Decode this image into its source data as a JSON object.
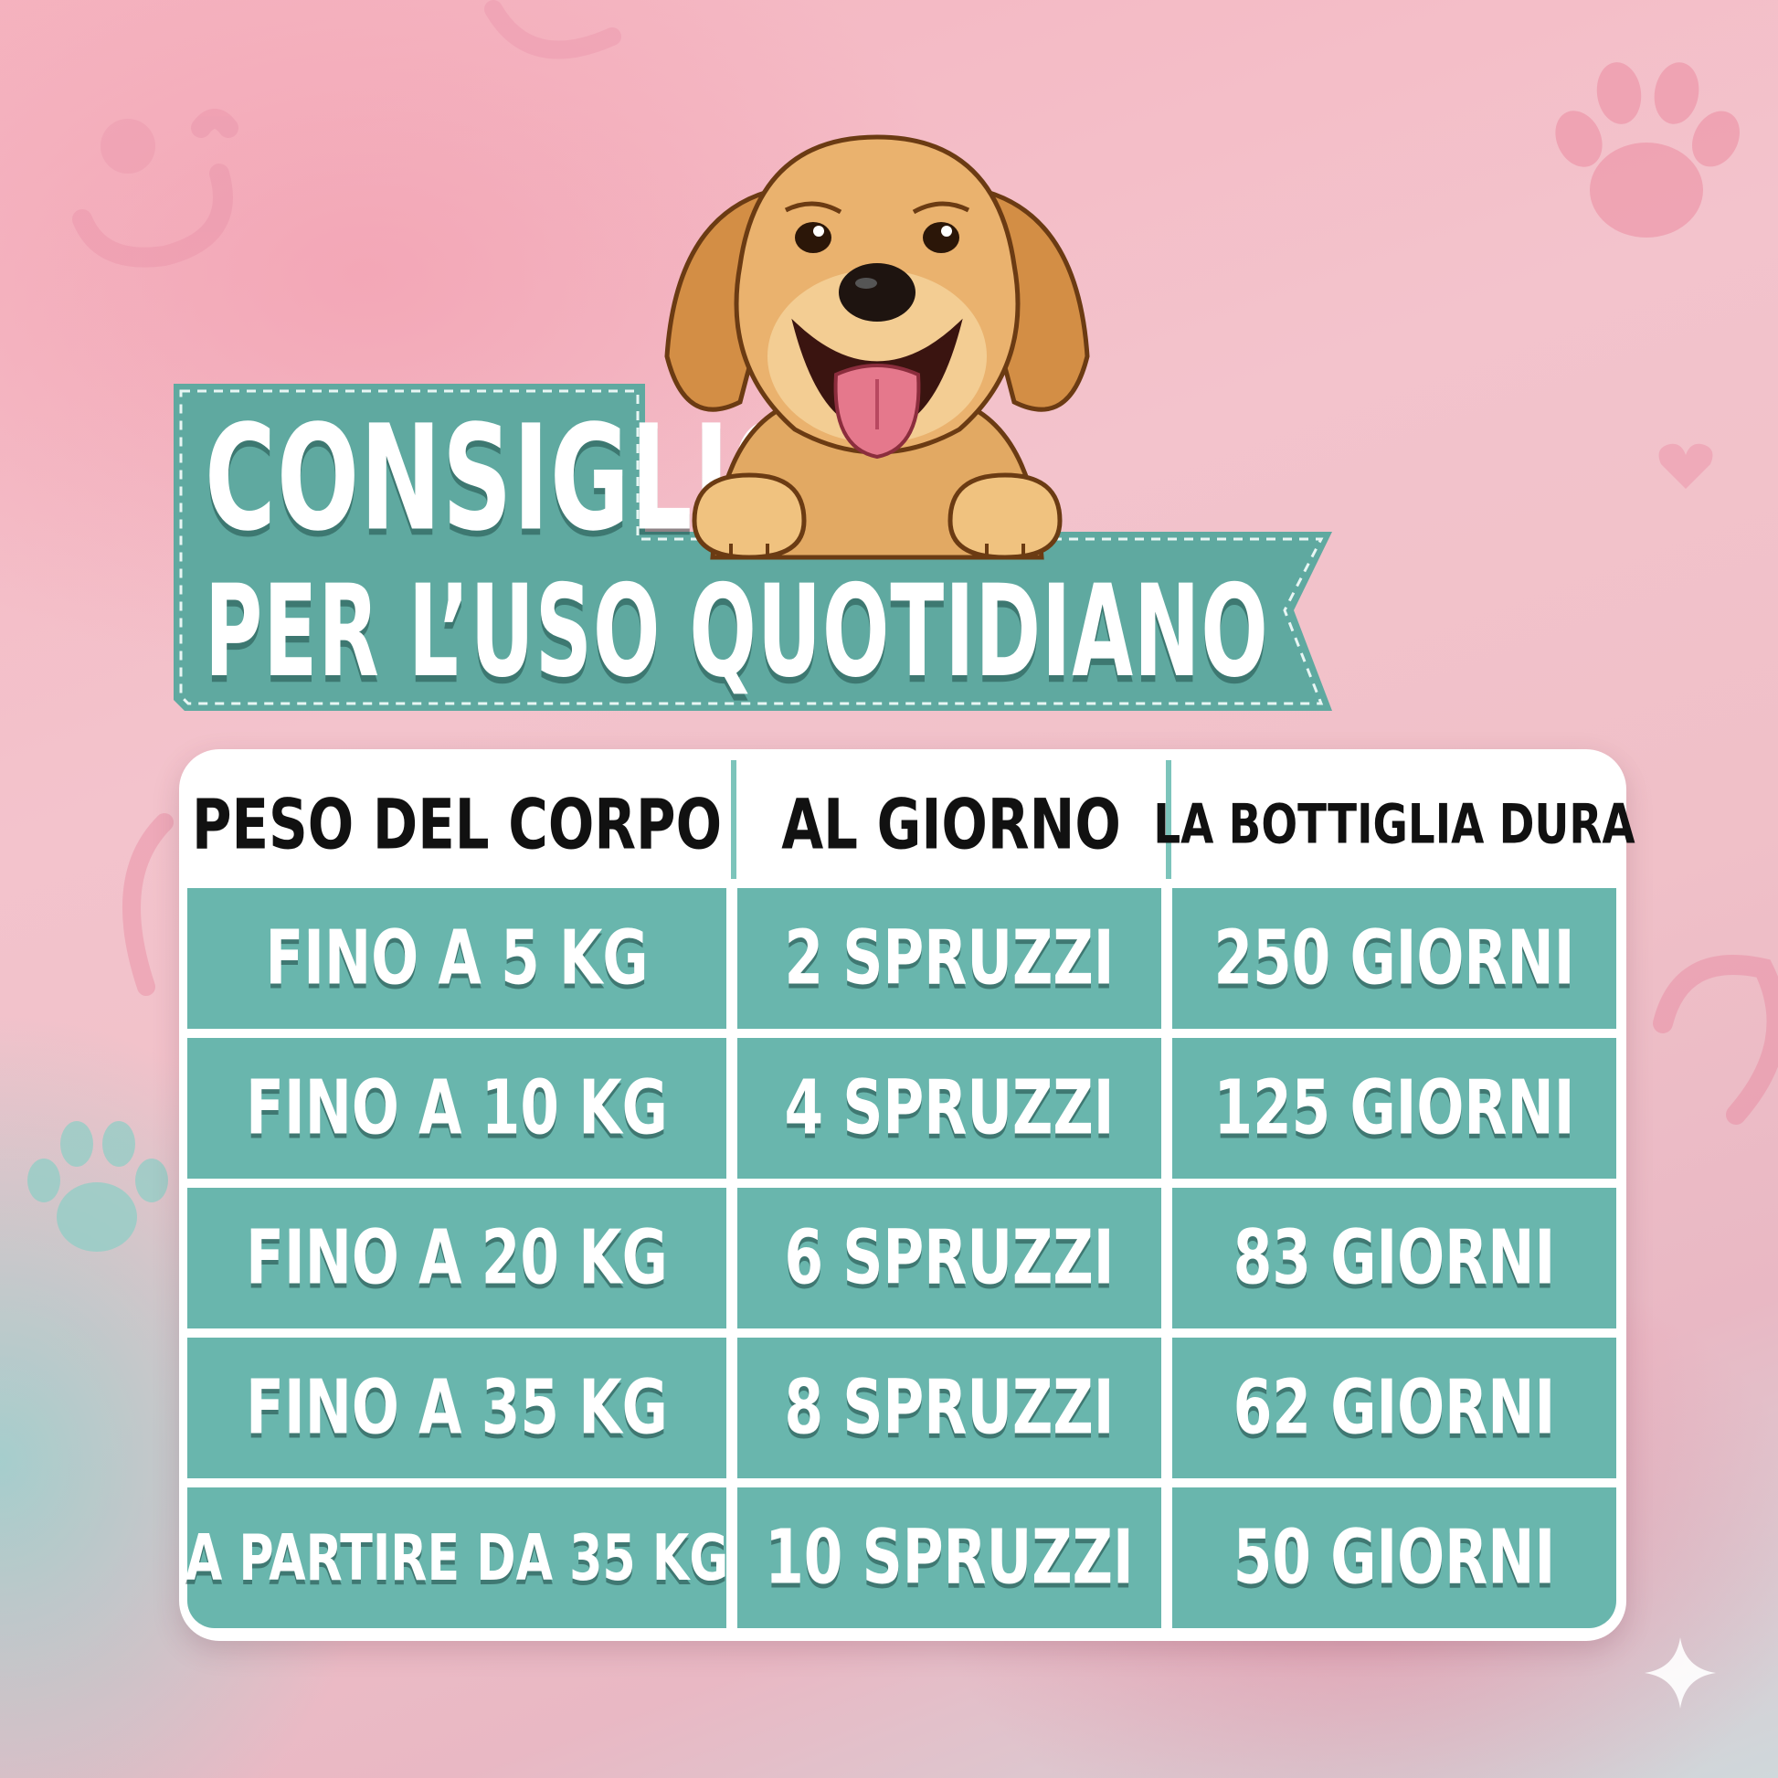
{
  "title": {
    "line1": "CONSIGLIO",
    "line2": "PER L’USO QUOTIDIANO"
  },
  "table": {
    "headers": [
      "PESO DEL CORPO",
      "AL GIORNO",
      "LA BOTTIGLIA DURA"
    ],
    "rows": [
      [
        "FINO A 5 KG",
        "2 SPRUZZI",
        "250 GIORNI"
      ],
      [
        "FINO A 10 KG",
        "4 SPRUZZI",
        "125 GIORNI"
      ],
      [
        "FINO A 20 KG",
        "6 SPRUZZI",
        "83 GIORNI"
      ],
      [
        "FINO A 35 KG",
        "8 SPRUZZI",
        "62 GIORNI"
      ],
      [
        "A PARTIRE DA 35 KG",
        "10 SPRUZZI",
        "50 GIORNI"
      ]
    ]
  },
  "icons": [
    "dog-illustration-icon",
    "paw-print-icon",
    "sparkle-icon"
  ],
  "colors": {
    "teal": "#69b6ad",
    "banner": "#5fa9a0",
    "pink_bg": "#f3c3cc",
    "header_text": "#111111"
  }
}
